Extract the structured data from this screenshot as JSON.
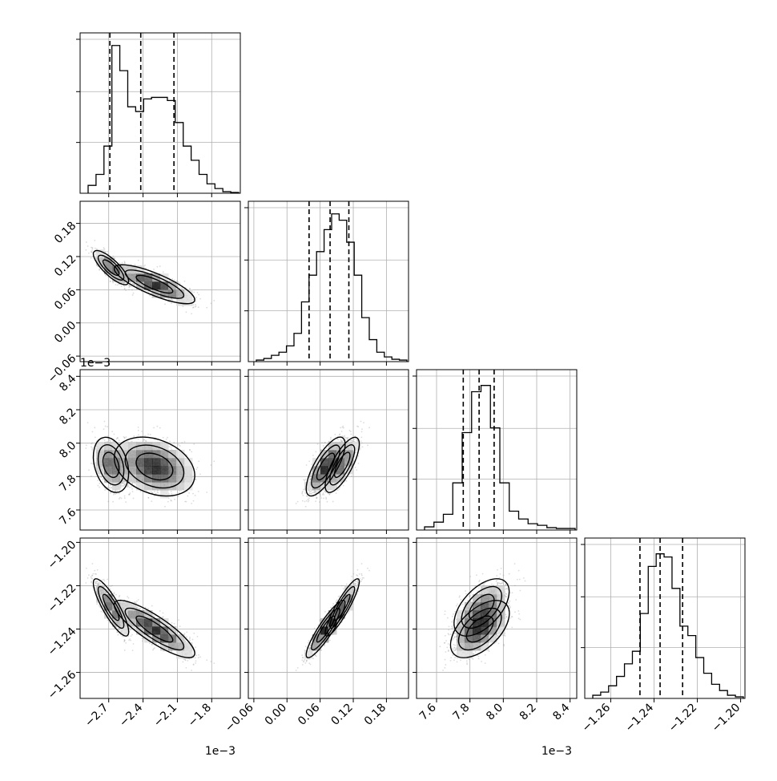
{
  "chart_data": {
    "type": "corner",
    "parameters": [
      {
        "id": "p0",
        "range": [
          -2.95,
          -1.55
        ],
        "ticks": [
          -2.7,
          -2.4,
          -2.1,
          -1.8
        ],
        "tick_labels": [
          "−2.7",
          "−2.4",
          "−2.1",
          "−1.8"
        ],
        "offset_label": "1e−3",
        "quantiles": [
          -2.69,
          -2.42,
          -2.13
        ],
        "hist": [
          0.05,
          0.12,
          0.3,
          0.94,
          0.78,
          0.55,
          0.52,
          0.6,
          0.61,
          0.61,
          0.59,
          0.45,
          0.3,
          0.21,
          0.12,
          0.06,
          0.03,
          0.01,
          0.005
        ]
      },
      {
        "id": "p1",
        "range": [
          -0.07,
          0.22
        ],
        "ticks": [
          -0.06,
          0.0,
          0.06,
          0.12,
          0.18
        ],
        "tick_labels": [
          "−0.06",
          "0.00",
          "0.06",
          "0.12",
          "0.18"
        ],
        "offset_label": "",
        "quantiles": [
          0.04,
          0.078,
          0.112
        ],
        "hist": [
          0.01,
          0.02,
          0.04,
          0.06,
          0.1,
          0.18,
          0.38,
          0.55,
          0.7,
          0.84,
          0.94,
          0.9,
          0.76,
          0.55,
          0.28,
          0.14,
          0.06,
          0.03,
          0.015,
          0.01
        ]
      },
      {
        "id": "p2",
        "range": [
          7.48,
          8.44
        ],
        "ticks": [
          7.6,
          7.8,
          8.0,
          8.2,
          8.4
        ],
        "tick_labels": [
          "7.6",
          "7.8",
          "8.0",
          "8.2",
          "8.4"
        ],
        "offset_label": "1e−3",
        "quantiles": [
          7.76,
          7.855,
          7.945
        ],
        "hist": [
          0.02,
          0.05,
          0.1,
          0.3,
          0.62,
          0.88,
          0.92,
          0.65,
          0.3,
          0.12,
          0.07,
          0.04,
          0.03,
          0.015,
          0.01,
          0.01
        ]
      },
      {
        "id": "p3",
        "range": [
          -1.272,
          -1.198
        ],
        "ticks": [
          -1.26,
          -1.24,
          -1.22,
          -1.2
        ],
        "tick_labels": [
          "−1.26",
          "−1.24",
          "−1.22",
          "−1.20"
        ],
        "offset_label": "",
        "quantiles": [
          -1.2465,
          -1.2372,
          -1.2268
        ],
        "hist": [
          0.02,
          0.04,
          0.08,
          0.14,
          0.22,
          0.3,
          0.54,
          0.84,
          0.92,
          0.9,
          0.7,
          0.46,
          0.4,
          0.26,
          0.16,
          0.09,
          0.05,
          0.02,
          0.01
        ]
      }
    ],
    "scatter_points_per_panel": 2200,
    "gaussian_components": [
      {
        "weight": 0.4,
        "mean": [
          -2.68,
          0.1,
          7.87,
          -1.23
        ],
        "std": [
          0.07,
          0.014,
          0.075,
          0.006
        ]
      },
      {
        "weight": 0.6,
        "mean": [
          -2.3,
          0.07,
          7.86,
          -1.24
        ],
        "std": [
          0.16,
          0.016,
          0.08,
          0.006
        ]
      }
    ],
    "x_offset_labels": [
      {
        "column": 0,
        "text": "1e−3"
      },
      {
        "column": 2,
        "text": "1e−3"
      }
    ],
    "y_offset_labels": [
      {
        "row": 2,
        "text": "1e−3"
      }
    ],
    "grid": true,
    "colors": {
      "hist": "#000000",
      "scatter": "#9a9a9a",
      "contour": "#000000",
      "quantile": "#000000",
      "grid": "#b0b0b0"
    }
  }
}
